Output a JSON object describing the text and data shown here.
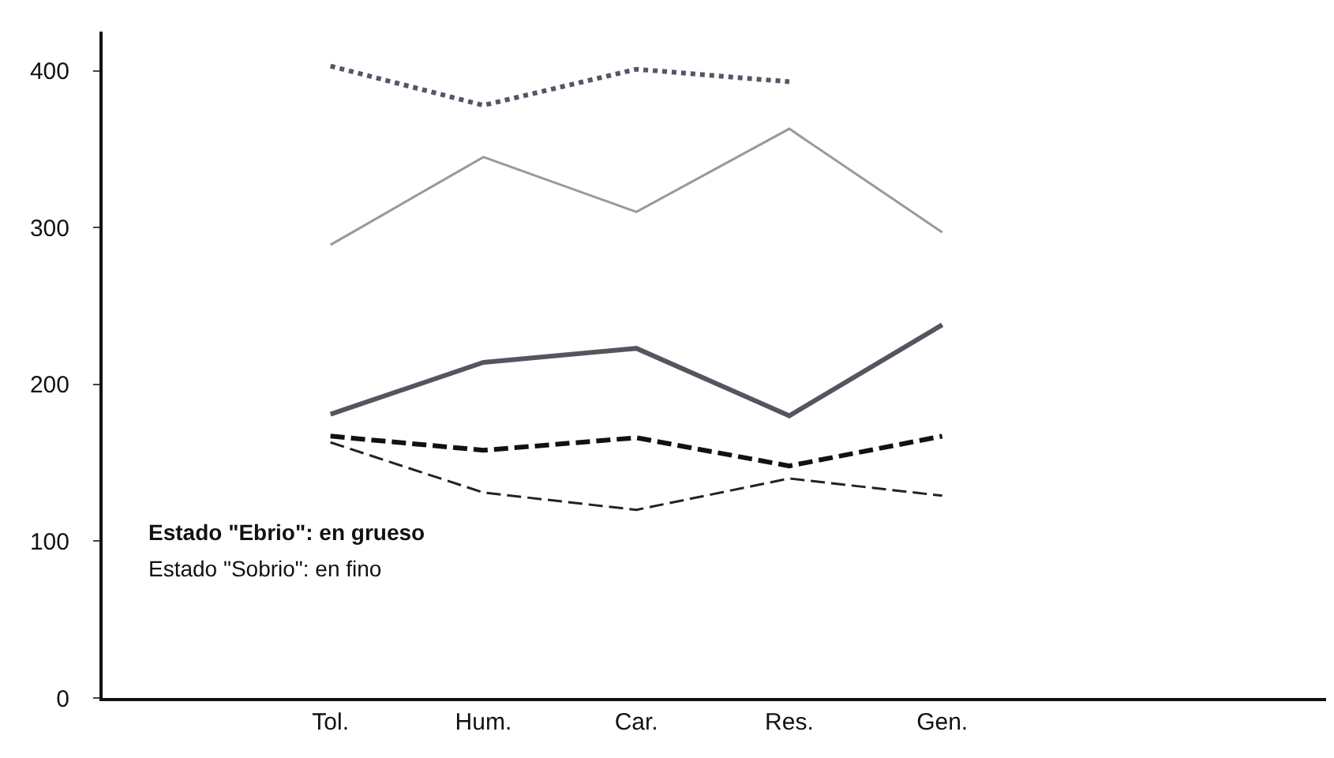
{
  "chart_data": {
    "type": "line",
    "categories": [
      "Tol.",
      "Hum.",
      "Car.",
      "Res.",
      "Gen."
    ],
    "series": [
      {
        "color": "#555566",
        "line_style": "dotted",
        "values": [
          403,
          378,
          401,
          393,
          null
        ]
      },
      {
        "color": "#555560",
        "line_style": "solid",
        "values": [
          181,
          214,
          223,
          180,
          238
        ]
      },
      {
        "color": "#111111",
        "line_style": "dashed",
        "values": [
          167,
          158,
          166,
          148,
          167
        ]
      },
      {
        "color": "#999999",
        "line_style": "solid",
        "values": [
          289,
          345,
          310,
          363,
          297
        ]
      },
      {
        "color": "#222222",
        "line_style": "dashed",
        "values": [
          163,
          131,
          120,
          140,
          129
        ]
      }
    ],
    "ylim": [
      0,
      425
    ],
    "yticks": [
      0,
      100,
      200,
      300,
      400
    ],
    "marker": "none",
    "annotations": [
      "Estado \"Ebrio\": en grueso",
      "Estado \"Sobrio\": en fino"
    ]
  }
}
